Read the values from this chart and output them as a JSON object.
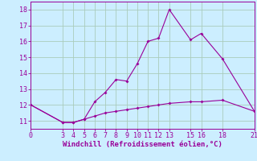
{
  "xlabel": "Windchill (Refroidissement éolien,°C)",
  "background_color": "#cceeff",
  "grid_color": "#aaccbb",
  "line_color": "#990099",
  "line1_x": [
    0,
    3,
    4,
    5,
    6,
    7,
    8,
    9,
    10,
    11,
    12,
    13,
    15,
    16,
    18,
    21
  ],
  "line1_y": [
    12.0,
    10.9,
    10.9,
    11.1,
    12.2,
    12.8,
    13.6,
    13.5,
    14.6,
    16.0,
    16.2,
    18.0,
    16.1,
    16.5,
    14.9,
    11.6
  ],
  "line2_x": [
    0,
    3,
    4,
    5,
    6,
    7,
    8,
    9,
    10,
    11,
    12,
    13,
    15,
    16,
    18,
    21
  ],
  "line2_y": [
    12.0,
    10.9,
    10.9,
    11.1,
    11.3,
    11.5,
    11.6,
    11.7,
    11.8,
    11.9,
    12.0,
    12.1,
    12.2,
    12.2,
    12.3,
    11.6
  ],
  "xlim": [
    0,
    21
  ],
  "ylim": [
    10.5,
    18.5
  ],
  "xticks": [
    0,
    3,
    4,
    5,
    6,
    7,
    8,
    9,
    10,
    11,
    12,
    13,
    15,
    16,
    18,
    21
  ],
  "yticks": [
    11,
    12,
    13,
    14,
    15,
    16,
    17,
    18
  ],
  "label_fontsize": 6.5,
  "tick_fontsize": 6.0
}
